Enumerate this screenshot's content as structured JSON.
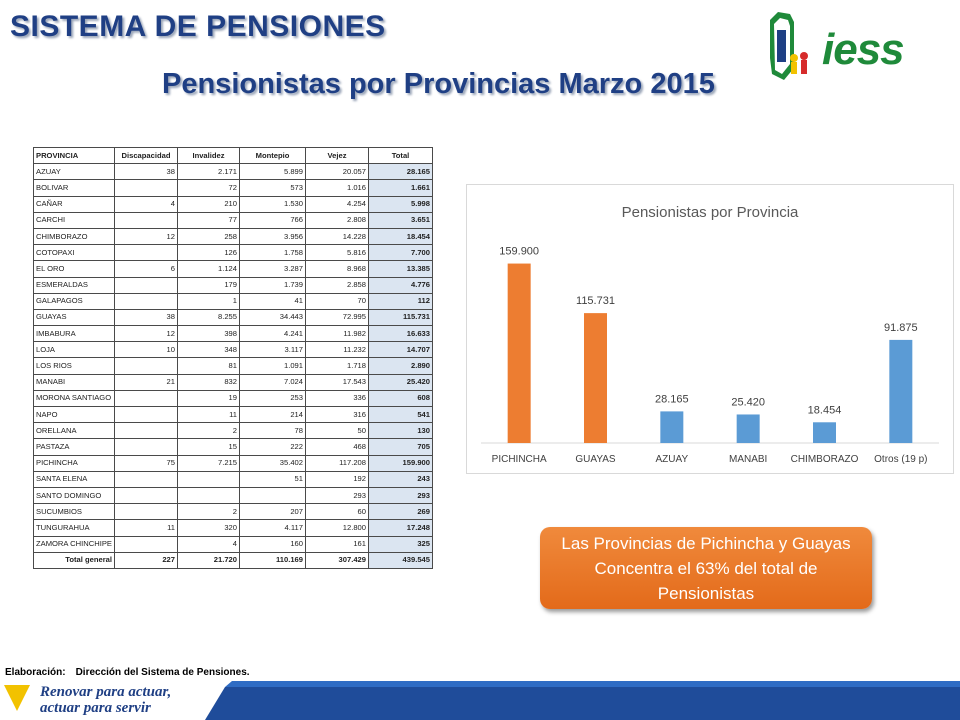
{
  "header": {
    "title": "SISTEMA DE PENSIONES",
    "subtitle": "Pensionistas por Provincias Marzo 2015",
    "logo_text": "iess"
  },
  "colors": {
    "title_blue": "#1f3f84",
    "bar_orange": "#ed7d31",
    "bar_blue": "#5b9bd5",
    "logo_green": "#1f8a3a",
    "total_cell": "#dbe5f1"
  },
  "table": {
    "headers": [
      "PROVINCIA",
      "Discapacidad",
      "Invalidez",
      "Montepio",
      "Vejez",
      "Total"
    ],
    "rows": [
      [
        "AZUAY",
        "38",
        "2.171",
        "5.899",
        "20.057",
        "28.165"
      ],
      [
        "BOLIVAR",
        "",
        "72",
        "573",
        "1.016",
        "1.661"
      ],
      [
        "CAÑAR",
        "4",
        "210",
        "1.530",
        "4.254",
        "5.998"
      ],
      [
        "CARCHI",
        "",
        "77",
        "766",
        "2.808",
        "3.651"
      ],
      [
        "CHIMBORAZO",
        "12",
        "258",
        "3.956",
        "14.228",
        "18.454"
      ],
      [
        "COTOPAXI",
        "",
        "126",
        "1.758",
        "5.816",
        "7.700"
      ],
      [
        "EL ORO",
        "6",
        "1.124",
        "3.287",
        "8.968",
        "13.385"
      ],
      [
        "ESMERALDAS",
        "",
        "179",
        "1.739",
        "2.858",
        "4.776"
      ],
      [
        "GALAPAGOS",
        "",
        "1",
        "41",
        "70",
        "112"
      ],
      [
        "GUAYAS",
        "38",
        "8.255",
        "34.443",
        "72.995",
        "115.731"
      ],
      [
        "IMBABURA",
        "12",
        "398",
        "4.241",
        "11.982",
        "16.633"
      ],
      [
        "LOJA",
        "10",
        "348",
        "3.117",
        "11.232",
        "14.707"
      ],
      [
        "LOS RIOS",
        "",
        "81",
        "1.091",
        "1.718",
        "2.890"
      ],
      [
        "MANABI",
        "21",
        "832",
        "7.024",
        "17.543",
        "25.420"
      ],
      [
        "MORONA SANTIAGO",
        "",
        "19",
        "253",
        "336",
        "608"
      ],
      [
        "NAPO",
        "",
        "11",
        "214",
        "316",
        "541"
      ],
      [
        "ORELLANA",
        "",
        "2",
        "78",
        "50",
        "130"
      ],
      [
        "PASTAZA",
        "",
        "15",
        "222",
        "468",
        "705"
      ],
      [
        "PICHINCHA",
        "75",
        "7.215",
        "35.402",
        "117.208",
        "159.900"
      ],
      [
        "SANTA ELENA",
        "",
        "",
        "51",
        "192",
        "243"
      ],
      [
        "SANTO DOMINGO",
        "",
        "",
        "",
        "293",
        "293"
      ],
      [
        "SUCUMBIOS",
        "",
        "2",
        "207",
        "60",
        "269"
      ],
      [
        "TUNGURAHUA",
        "11",
        "320",
        "4.117",
        "12.800",
        "17.248"
      ],
      [
        "ZAMORA CHINCHIPE",
        "",
        "4",
        "160",
        "161",
        "325"
      ]
    ],
    "total_row": [
      "Total general",
      "227",
      "21.720",
      "110.169",
      "307.429",
      "439.545"
    ]
  },
  "chart_data": {
    "type": "bar",
    "title": "Pensionistas por Provincia",
    "categories": [
      "PICHINCHA",
      "GUAYAS",
      "AZUAY",
      "MANABI",
      "CHIMBORAZO",
      "Otros (19 p)"
    ],
    "values": [
      159900,
      115731,
      28165,
      25420,
      18454,
      91875
    ],
    "value_labels": [
      "159.900",
      "115.731",
      "28.165",
      "25.420",
      "18.454",
      "91.875"
    ],
    "bar_colors": [
      "#ed7d31",
      "#ed7d31",
      "#5b9bd5",
      "#5b9bd5",
      "#5b9bd5",
      "#5b9bd5"
    ],
    "xlabel": "",
    "ylabel": "",
    "ylim": [
      0,
      180000
    ],
    "grid": false
  },
  "callout": {
    "text": "Las Provincias de Pichincha y Guayas Concentra el 63% del total de Pensionistas"
  },
  "footer": {
    "elaboracion_label": "Elaboración:",
    "elaboracion_value": "Dirección del Sistema de Pensiones.",
    "slogan_line1": "Renovar para actuar,",
    "slogan_line2": "actuar para servir"
  }
}
